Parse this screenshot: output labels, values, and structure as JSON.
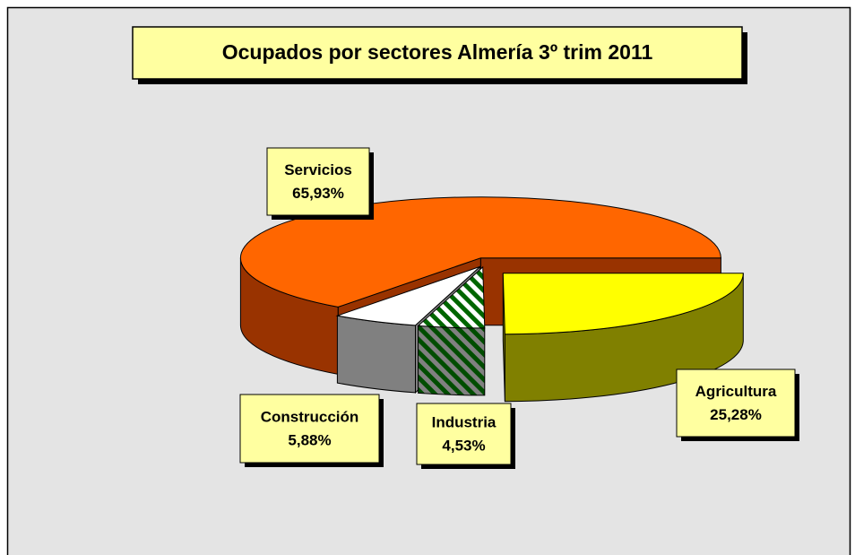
{
  "chart_data": {
    "type": "pie3d",
    "title": "Ocupados por sectores Almería 3º trim 2011",
    "categories": [
      "Agricultura",
      "Industria",
      "Construcción",
      "Servicios"
    ],
    "values": [
      25.28,
      4.53,
      5.88,
      65.93
    ],
    "value_labels": [
      "25,28%",
      "4,53%",
      "5,88%",
      "65,93%"
    ],
    "colors": [
      "#ffff00",
      "#006600",
      "#ffffff",
      "#ff6600"
    ],
    "side_colors": [
      "#808000",
      "#004d00",
      "#808080",
      "#993300"
    ],
    "patterns": [
      "solid",
      "hatch",
      "solid",
      "solid"
    ]
  }
}
